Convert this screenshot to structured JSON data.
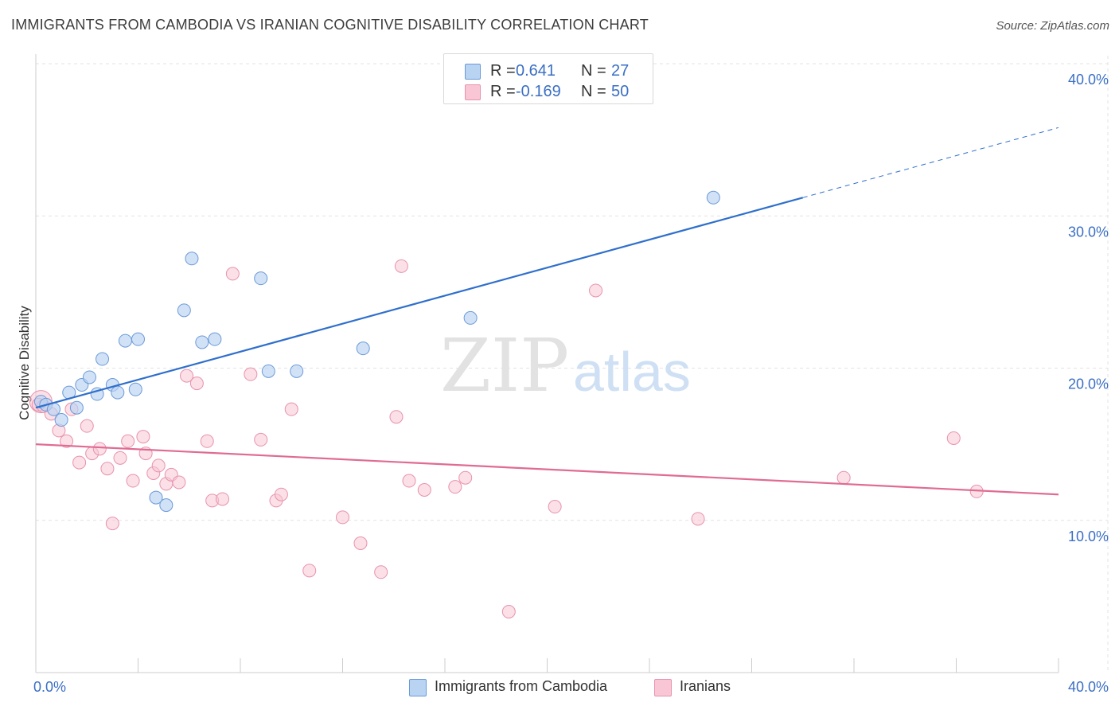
{
  "header": {
    "title": "IMMIGRANTS FROM CAMBODIA VS IRANIAN COGNITIVE DISABILITY CORRELATION CHART",
    "source": "Source: ZipAtlas.com"
  },
  "watermark": {
    "zip": "ZIP",
    "atlas": "atlas"
  },
  "legend": {
    "series1": {
      "r_label": "R =",
      "r_value": "0.641",
      "n_label": "N =",
      "n_value": "27"
    },
    "series2": {
      "r_label": "R =",
      "r_value": "-0.169",
      "n_label": "N =",
      "n_value": "50"
    }
  },
  "colors": {
    "series1_fill": "#b9d3f2",
    "series1_stroke": "#6b9ad8",
    "series1_line": "#2f6fcc",
    "series2_fill": "#f8c6d4",
    "series2_stroke": "#e892ac",
    "series2_line": "#e06b93",
    "axis_text": "#3a6fc4",
    "grid": "#e3e3e3"
  },
  "chart_data": {
    "type": "scatter",
    "title": "IMMIGRANTS FROM CAMBODIA VS IRANIAN COGNITIVE DISABILITY CORRELATION CHART",
    "xlabel": "",
    "ylabel": "Cognitive Disability",
    "xlim": [
      0,
      40
    ],
    "ylim": [
      0,
      40
    ],
    "x_tick_labels": [
      "0.0%",
      "40.0%"
    ],
    "y_ticks": [
      10,
      20,
      30,
      40
    ],
    "y_tick_labels": [
      "10.0%",
      "20.0%",
      "30.0%",
      "40.0%"
    ],
    "grid": true,
    "series": [
      {
        "name": "Immigrants from Cambodia",
        "R": 0.641,
        "N": 27,
        "points": [
          [
            0.2,
            17.8
          ],
          [
            0.4,
            17.6
          ],
          [
            0.7,
            17.3
          ],
          [
            1.0,
            16.6
          ],
          [
            1.3,
            18.4
          ],
          [
            1.6,
            17.4
          ],
          [
            1.8,
            18.9
          ],
          [
            2.1,
            19.4
          ],
          [
            2.4,
            18.3
          ],
          [
            2.6,
            20.6
          ],
          [
            3.0,
            18.9
          ],
          [
            3.2,
            18.4
          ],
          [
            3.5,
            21.8
          ],
          [
            3.9,
            18.6
          ],
          [
            4.0,
            21.9
          ],
          [
            4.7,
            11.5
          ],
          [
            5.1,
            11.0
          ],
          [
            5.8,
            23.8
          ],
          [
            6.1,
            27.2
          ],
          [
            6.5,
            21.7
          ],
          [
            7.0,
            21.9
          ],
          [
            8.8,
            25.9
          ],
          [
            9.1,
            19.8
          ],
          [
            10.2,
            19.8
          ],
          [
            12.8,
            21.3
          ],
          [
            17.0,
            23.3
          ],
          [
            26.5,
            31.2
          ]
        ],
        "trend": {
          "x0": 0,
          "y0": 17.4,
          "x1": 30.0,
          "y1": 31.2,
          "dash_x1": 40,
          "dash_y1": 35.8
        }
      },
      {
        "name": "Iranians",
        "R": -0.169,
        "N": 50,
        "points": [
          [
            0.1,
            17.6
          ],
          [
            0.3,
            17.5
          ],
          [
            0.6,
            17.0
          ],
          [
            0.9,
            15.9
          ],
          [
            1.2,
            15.2
          ],
          [
            1.4,
            17.3
          ],
          [
            1.7,
            13.8
          ],
          [
            2.0,
            16.2
          ],
          [
            2.2,
            14.4
          ],
          [
            2.5,
            14.7
          ],
          [
            2.8,
            13.4
          ],
          [
            3.0,
            9.8
          ],
          [
            3.3,
            14.1
          ],
          [
            3.6,
            15.2
          ],
          [
            3.8,
            12.6
          ],
          [
            4.2,
            15.5
          ],
          [
            4.3,
            14.4
          ],
          [
            4.6,
            13.1
          ],
          [
            4.8,
            13.6
          ],
          [
            5.1,
            12.4
          ],
          [
            5.3,
            13.0
          ],
          [
            5.6,
            12.5
          ],
          [
            5.9,
            19.5
          ],
          [
            6.3,
            19.0
          ],
          [
            6.7,
            15.2
          ],
          [
            6.9,
            11.3
          ],
          [
            7.3,
            11.4
          ],
          [
            7.7,
            26.2
          ],
          [
            8.4,
            19.6
          ],
          [
            8.8,
            15.3
          ],
          [
            9.4,
            11.3
          ],
          [
            9.6,
            11.7
          ],
          [
            10.0,
            17.3
          ],
          [
            10.7,
            6.7
          ],
          [
            12.0,
            10.2
          ],
          [
            12.7,
            8.5
          ],
          [
            13.5,
            6.6
          ],
          [
            14.1,
            16.8
          ],
          [
            14.3,
            26.7
          ],
          [
            14.6,
            12.6
          ],
          [
            15.2,
            12.0
          ],
          [
            16.4,
            12.2
          ],
          [
            16.8,
            12.8
          ],
          [
            18.5,
            4.0
          ],
          [
            20.3,
            10.9
          ],
          [
            21.9,
            25.1
          ],
          [
            25.9,
            10.1
          ],
          [
            31.6,
            12.8
          ],
          [
            35.9,
            15.4
          ],
          [
            36.8,
            11.9
          ]
        ],
        "trend": {
          "x0": 0,
          "y0": 15.0,
          "x1": 40,
          "y1": 11.7
        }
      }
    ]
  },
  "bottom_legend": {
    "series1_label": "Immigrants from Cambodia",
    "series2_label": "Iranians"
  }
}
